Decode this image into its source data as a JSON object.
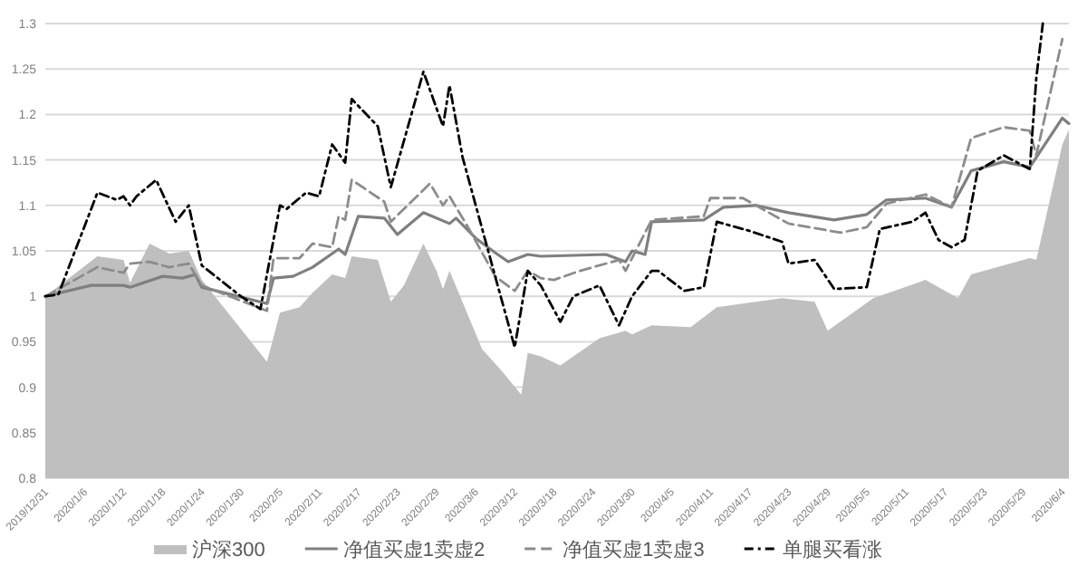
{
  "chart_data": {
    "type": "line",
    "xlim": [
      "2019-12-31",
      "2020-06-05"
    ],
    "xticks": [
      {
        "value": "2019-12-31",
        "label": "2019/12/31"
      },
      {
        "value": "2020-01-06",
        "label": "2020/1/6"
      },
      {
        "value": "2020-01-12",
        "label": "2020/1/12"
      },
      {
        "value": "2020-01-18",
        "label": "2020/1/18"
      },
      {
        "value": "2020-01-24",
        "label": "2020/1/24"
      },
      {
        "value": "2020-01-30",
        "label": "2020/1/30"
      },
      {
        "value": "2020-02-05",
        "label": "2020/2/5"
      },
      {
        "value": "2020-02-11",
        "label": "2020/2/11"
      },
      {
        "value": "2020-02-17",
        "label": "2020/2/17"
      },
      {
        "value": "2020-02-23",
        "label": "2020/2/23"
      },
      {
        "value": "2020-02-29",
        "label": "2020/2/29"
      },
      {
        "value": "2020-03-06",
        "label": "2020/3/6"
      },
      {
        "value": "2020-03-12",
        "label": "2020/3/12"
      },
      {
        "value": "2020-03-18",
        "label": "2020/3/18"
      },
      {
        "value": "2020-03-24",
        "label": "2020/3/24"
      },
      {
        "value": "2020-03-30",
        "label": "2020/3/30"
      },
      {
        "value": "2020-04-05",
        "label": "2020/4/5"
      },
      {
        "value": "2020-04-11",
        "label": "2020/4/11"
      },
      {
        "value": "2020-04-17",
        "label": "2020/4/17"
      },
      {
        "value": "2020-04-23",
        "label": "2020/4/23"
      },
      {
        "value": "2020-04-29",
        "label": "2020/4/29"
      },
      {
        "value": "2020-05-05",
        "label": "2020/5/5"
      },
      {
        "value": "2020-05-11",
        "label": "2020/5/11"
      },
      {
        "value": "2020-05-17",
        "label": "2020/5/17"
      },
      {
        "value": "2020-05-23",
        "label": "2020/5/23"
      },
      {
        "value": "2020-05-29",
        "label": "2020/5/29"
      },
      {
        "value": "2020-06-04",
        "label": "2020/6/4"
      }
    ],
    "ylim": [
      0.8,
      1.3
    ],
    "yticks": [
      0.8,
      0.85,
      0.9,
      0.95,
      1,
      1.05,
      1.1,
      1.15,
      1.2,
      1.25,
      1.3
    ],
    "grid": "y",
    "legend": "bottom",
    "series": [
      {
        "name": "沪深300",
        "type": "area",
        "color": "#bfbfbf",
        "x": [
          "2019-12-31",
          "2020-01-08",
          "2020-01-12",
          "2020-01-13",
          "2020-01-16",
          "2020-01-19",
          "2020-01-22",
          "2020-01-24",
          "2020-02-03",
          "2020-02-05",
          "2020-02-08",
          "2020-02-10",
          "2020-02-13",
          "2020-02-15",
          "2020-02-16",
          "2020-02-20",
          "2020-02-22",
          "2020-02-24",
          "2020-02-27",
          "2020-02-29",
          "2020-03-01",
          "2020-03-02",
          "2020-03-07",
          "2020-03-10",
          "2020-03-13",
          "2020-03-14",
          "2020-03-16",
          "2020-03-19",
          "2020-03-25",
          "2020-03-29",
          "2020-03-30",
          "2020-04-02",
          "2020-04-08",
          "2020-04-12",
          "2020-04-22",
          "2020-04-27",
          "2020-04-29",
          "2020-05-06",
          "2020-05-14",
          "2020-05-19",
          "2020-05-21",
          "2020-05-30",
          "2020-05-31",
          "2020-06-04",
          "2020-06-05"
        ],
        "values": [
          1.0,
          1.044,
          1.04,
          1.015,
          1.058,
          1.047,
          1.05,
          1.018,
          0.928,
          0.982,
          0.988,
          1.004,
          1.024,
          1.02,
          1.044,
          1.04,
          0.994,
          1.012,
          1.058,
          1.028,
          1.008,
          1.028,
          0.942,
          0.918,
          0.892,
          0.938,
          0.934,
          0.924,
          0.954,
          0.962,
          0.958,
          0.968,
          0.966,
          0.988,
          0.998,
          0.994,
          0.962,
          0.998,
          1.018,
          0.998,
          1.024,
          1.042,
          1.04,
          1.167,
          1.183
        ]
      },
      {
        "name": "净值买虚1卖虚2",
        "color": "#7f7f7f",
        "line_style": "solid",
        "x": [
          "2019-12-31",
          "2020-01-07",
          "2020-01-12",
          "2020-01-13",
          "2020-01-18",
          "2020-01-21",
          "2020-01-23",
          "2020-01-24",
          "2020-02-03",
          "2020-02-04",
          "2020-02-07",
          "2020-02-10",
          "2020-02-14",
          "2020-02-15",
          "2020-02-17",
          "2020-02-21",
          "2020-02-23",
          "2020-02-27",
          "2020-03-02",
          "2020-03-03",
          "2020-03-06",
          "2020-03-09",
          "2020-03-11",
          "2020-03-14",
          "2020-03-16",
          "2020-03-26",
          "2020-03-29",
          "2020-03-30",
          "2020-04-01",
          "2020-04-02",
          "2020-04-10",
          "2020-04-13",
          "2020-04-18",
          "2020-04-23",
          "2020-04-30",
          "2020-05-05",
          "2020-05-08",
          "2020-05-14",
          "2020-05-18",
          "2020-05-21",
          "2020-05-26",
          "2020-05-30",
          "2020-06-04",
          "2020-06-05"
        ],
        "values": [
          1.0,
          1.012,
          1.012,
          1.01,
          1.022,
          1.02,
          1.024,
          1.01,
          0.992,
          1.02,
          1.022,
          1.032,
          1.052,
          1.046,
          1.088,
          1.086,
          1.068,
          1.092,
          1.08,
          1.086,
          1.064,
          1.048,
          1.038,
          1.046,
          1.044,
          1.046,
          1.038,
          1.05,
          1.046,
          1.082,
          1.084,
          1.098,
          1.1,
          1.092,
          1.084,
          1.09,
          1.106,
          1.108,
          1.098,
          1.138,
          1.148,
          1.142,
          1.196,
          1.19
        ]
      },
      {
        "name": "净值买虚1卖虚3",
        "color": "#8c8c8c",
        "line_style": "dashed",
        "x": [
          "2019-12-31",
          "2020-01-05",
          "2020-01-08",
          "2020-01-12",
          "2020-01-13",
          "2020-01-16",
          "2020-01-19",
          "2020-01-22",
          "2020-01-24",
          "2020-02-03",
          "2020-02-04",
          "2020-02-08",
          "2020-02-10",
          "2020-02-13",
          "2020-02-14",
          "2020-02-15",
          "2020-02-16",
          "2020-02-21",
          "2020-02-22",
          "2020-02-28",
          "2020-03-01",
          "2020-03-02",
          "2020-03-05",
          "2020-03-09",
          "2020-03-12",
          "2020-03-14",
          "2020-03-16",
          "2020-03-18",
          "2020-03-22",
          "2020-03-28",
          "2020-03-29",
          "2020-04-02",
          "2020-04-10",
          "2020-04-11",
          "2020-04-16",
          "2020-04-18",
          "2020-04-23",
          "2020-05-01",
          "2020-05-05",
          "2020-05-08",
          "2020-05-14",
          "2020-05-18",
          "2020-05-21",
          "2020-05-26",
          "2020-05-30",
          "2020-05-31",
          "2020-06-04"
        ],
        "values": [
          1.0,
          1.02,
          1.032,
          1.026,
          1.036,
          1.038,
          1.032,
          1.036,
          1.012,
          0.984,
          1.042,
          1.042,
          1.058,
          1.054,
          1.088,
          1.084,
          1.128,
          1.104,
          1.082,
          1.124,
          1.1,
          1.11,
          1.074,
          1.022,
          1.006,
          1.028,
          1.02,
          1.018,
          1.028,
          1.04,
          1.028,
          1.084,
          1.088,
          1.108,
          1.108,
          1.1,
          1.08,
          1.07,
          1.076,
          1.102,
          1.112,
          1.098,
          1.174,
          1.186,
          1.182,
          1.155,
          1.283
        ]
      },
      {
        "name": "单腿买看涨",
        "color": "#000000",
        "line_style": "dashdot",
        "x": [
          "2019-12-31",
          "2020-01-02",
          "2020-01-08",
          "2020-01-11",
          "2020-01-12",
          "2020-01-13",
          "2020-01-14",
          "2020-01-17",
          "2020-01-20",
          "2020-01-22",
          "2020-01-24",
          "2020-01-30",
          "2020-02-02",
          "2020-02-05",
          "2020-02-06",
          "2020-02-09",
          "2020-02-11",
          "2020-02-13",
          "2020-02-15",
          "2020-02-16",
          "2020-02-20",
          "2020-02-22",
          "2020-02-27",
          "2020-03-01",
          "2020-03-02",
          "2020-03-04",
          "2020-03-09",
          "2020-03-12",
          "2020-03-14",
          "2020-03-16",
          "2020-03-19",
          "2020-03-21",
          "2020-03-25",
          "2020-03-28",
          "2020-03-30",
          "2020-04-02",
          "2020-04-03",
          "2020-04-07",
          "2020-04-10",
          "2020-04-12",
          "2020-04-17",
          "2020-04-22",
          "2020-04-23",
          "2020-04-27",
          "2020-04-30",
          "2020-05-05",
          "2020-05-07",
          "2020-05-12",
          "2020-05-14",
          "2020-05-16",
          "2020-05-18",
          "2020-05-20",
          "2020-05-22",
          "2020-05-26",
          "2020-05-30",
          "2020-05-31",
          "2020-06-01"
        ],
        "values": [
          1.0,
          1.002,
          1.114,
          1.106,
          1.11,
          1.1,
          1.11,
          1.128,
          1.082,
          1.1,
          1.034,
          1.0,
          0.986,
          1.1,
          1.096,
          1.114,
          1.11,
          1.167,
          1.147,
          1.217,
          1.187,
          1.12,
          1.247,
          1.187,
          1.232,
          1.153,
          1.022,
          0.944,
          1.028,
          1.012,
          0.972,
          1.0,
          1.012,
          0.968,
          1.0,
          1.028,
          1.028,
          1.006,
          1.01,
          1.082,
          1.072,
          1.06,
          1.036,
          1.04,
          1.008,
          1.01,
          1.074,
          1.082,
          1.092,
          1.062,
          1.054,
          1.062,
          1.138,
          1.155,
          1.14,
          1.24,
          1.3
        ]
      }
    ]
  }
}
